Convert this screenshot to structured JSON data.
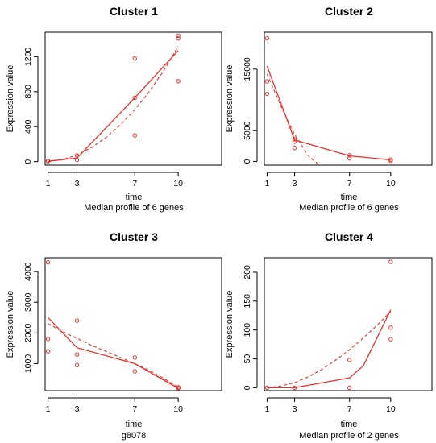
{
  "chart_data": [
    {
      "type": "line",
      "title": "Cluster 1",
      "xlabel": "time",
      "ylabel": "Expression value",
      "subtitle": "Median profile of  6  genes",
      "x_ticks": [
        1,
        3,
        7,
        10
      ],
      "y_ticks": [
        0,
        400,
        800,
        1200
      ],
      "xlim": [
        0.8,
        13
      ],
      "ylim": [
        -40,
        1480
      ],
      "grid": false,
      "color": "#e8302a",
      "points": [
        [
          1,
          5
        ],
        [
          1,
          10
        ],
        [
          3,
          20
        ],
        [
          3,
          70
        ],
        [
          7,
          300
        ],
        [
          7,
          730
        ],
        [
          7,
          1180
        ],
        [
          10,
          920
        ],
        [
          10,
          1410
        ],
        [
          10,
          1440
        ]
      ],
      "median_line": [
        [
          1,
          5
        ],
        [
          3,
          40
        ],
        [
          7,
          730
        ],
        [
          10,
          1270
        ]
      ],
      "fit_curve": [
        [
          1,
          0
        ],
        [
          2,
          22
        ],
        [
          3,
          75
        ],
        [
          4,
          160
        ],
        [
          5,
          275
        ],
        [
          6,
          420
        ],
        [
          7,
          595
        ],
        [
          8,
          800
        ],
        [
          9,
          1040
        ],
        [
          10,
          1320
        ]
      ]
    },
    {
      "type": "line",
      "title": "Cluster 2",
      "xlabel": "time",
      "ylabel": "Expression value",
      "subtitle": "Median profile of  6  genes",
      "x_ticks": [
        1,
        3,
        7,
        10
      ],
      "y_ticks": [
        0,
        5000,
        15000
      ],
      "xlim": [
        0.8,
        13
      ],
      "ylim": [
        -600,
        21000
      ],
      "grid": false,
      "color": "#e8302a",
      "points": [
        [
          1,
          20000
        ],
        [
          1,
          13000
        ],
        [
          1,
          11000
        ],
        [
          3,
          3200
        ],
        [
          3,
          2200
        ],
        [
          3,
          3600
        ],
        [
          7,
          500
        ],
        [
          7,
          1000
        ],
        [
          10,
          300
        ],
        [
          10,
          100
        ]
      ],
      "median_line": [
        [
          1,
          15500
        ],
        [
          3,
          3500
        ],
        [
          7,
          900
        ],
        [
          10,
          250
        ]
      ],
      "fit_curve": [
        [
          1,
          14200
        ],
        [
          2,
          9000
        ],
        [
          3,
          4400
        ],
        [
          4,
          900
        ],
        [
          4.8,
          -600
        ]
      ]
    },
    {
      "type": "line",
      "title": "Cluster 3",
      "xlabel": "time",
      "ylabel": "Expression value",
      "subtitle": "g8078",
      "x_ticks": [
        1,
        3,
        7,
        10
      ],
      "y_ticks": [
        1000,
        2000,
        3000,
        4000
      ],
      "xlim": [
        0.8,
        13
      ],
      "ylim": [
        120,
        4450
      ],
      "grid": false,
      "color": "#e8302a",
      "points": [
        [
          1,
          4300
        ],
        [
          1,
          1800
        ],
        [
          1,
          1400
        ],
        [
          3,
          2400
        ],
        [
          3,
          1300
        ],
        [
          3,
          950
        ],
        [
          7,
          1200
        ],
        [
          7,
          750
        ],
        [
          10,
          230
        ],
        [
          10,
          200
        ]
      ],
      "median_line": [
        [
          1,
          2500
        ],
        [
          3,
          1520
        ],
        [
          7,
          1000
        ],
        [
          10,
          200
        ]
      ],
      "fit_curve": [
        [
          1,
          2300
        ],
        [
          2,
          2050
        ],
        [
          3,
          1820
        ],
        [
          4,
          1600
        ],
        [
          5,
          1400
        ],
        [
          6,
          1200
        ],
        [
          7,
          1000
        ],
        [
          8,
          780
        ],
        [
          9,
          520
        ],
        [
          10,
          230
        ]
      ]
    },
    {
      "type": "line",
      "title": "Cluster 4",
      "xlabel": "time",
      "ylabel": "Expression value",
      "subtitle": "Median profile of  2  genes",
      "x_ticks": [
        1,
        3,
        7,
        10
      ],
      "y_ticks": [
        0,
        50,
        100,
        150,
        200
      ],
      "xlim": [
        0.8,
        13
      ],
      "ylim": [
        -5,
        225
      ],
      "grid": false,
      "color": "#e8302a",
      "points": [
        [
          1,
          0
        ],
        [
          3,
          0
        ],
        [
          7,
          48
        ],
        [
          7,
          0
        ],
        [
          10,
          218
        ],
        [
          10,
          104
        ],
        [
          10,
          84
        ]
      ],
      "median_line": [
        [
          1,
          0
        ],
        [
          3,
          0
        ],
        [
          7,
          17
        ],
        [
          8,
          38
        ],
        [
          10,
          135
        ]
      ],
      "fit_curve": [
        [
          1,
          0
        ],
        [
          2,
          3
        ],
        [
          3,
          9
        ],
        [
          4,
          19
        ],
        [
          5,
          32
        ],
        [
          6,
          48
        ],
        [
          7,
          66
        ],
        [
          8,
          86
        ],
        [
          9,
          108
        ],
        [
          10,
          132
        ]
      ]
    }
  ]
}
